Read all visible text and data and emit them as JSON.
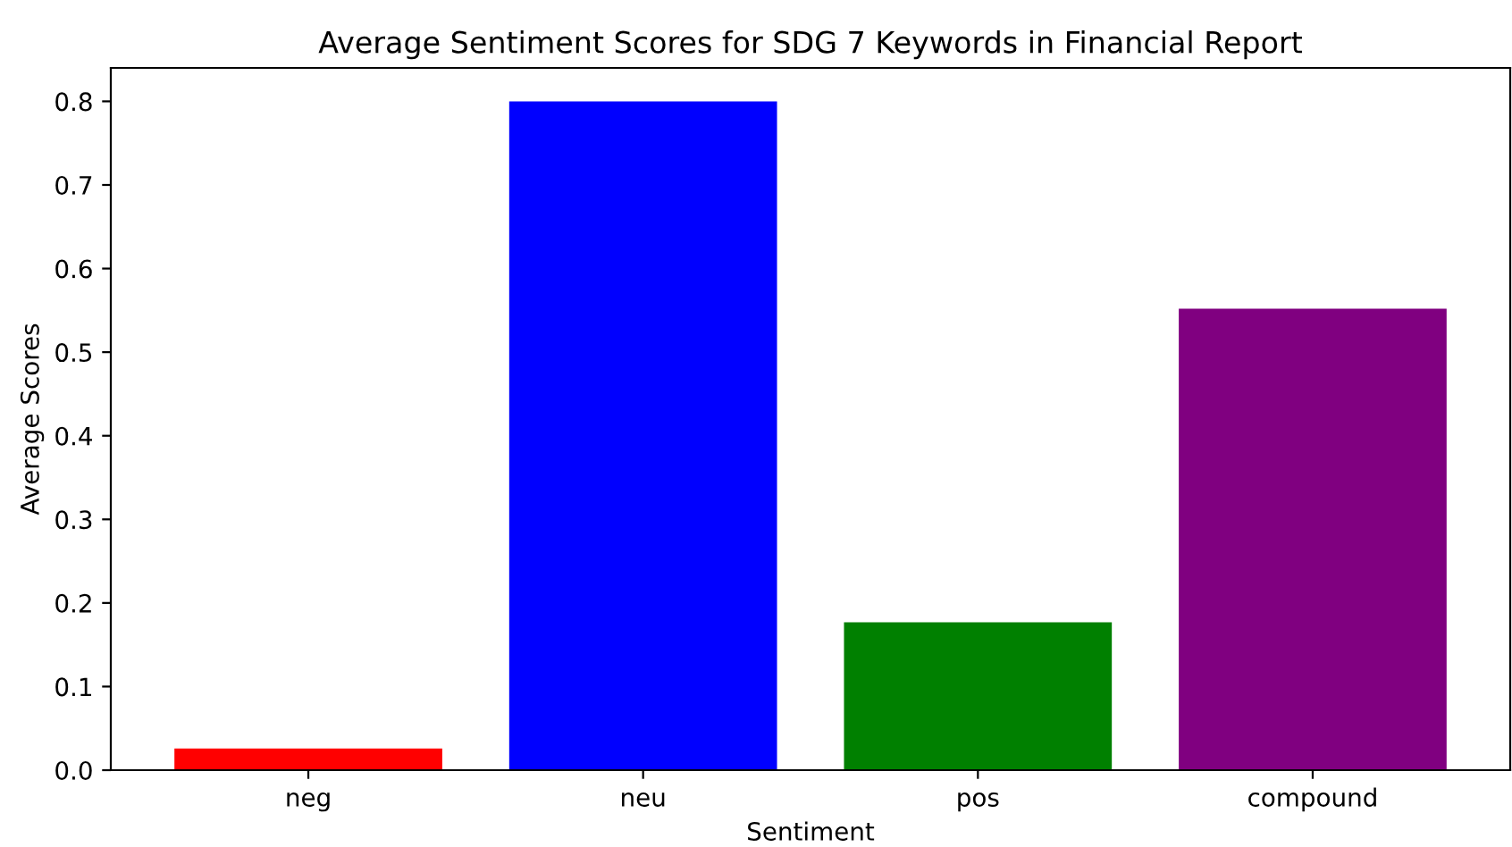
{
  "chart_data": {
    "type": "bar",
    "title": "Average Sentiment Scores for SDG 7 Keywords in Financial Report",
    "xlabel": "Sentiment",
    "ylabel": "Average Scores",
    "categories": [
      "neg",
      "neu",
      "pos",
      "compound"
    ],
    "values": [
      0.026,
      0.8,
      0.177,
      0.552
    ],
    "colors": [
      "#ff0000",
      "#0000ff",
      "#008000",
      "#800080"
    ],
    "ylim": [
      0,
      0.84
    ],
    "yticks": [
      {
        "value": 0,
        "label": "0.0"
      },
      0.1,
      0.2,
      0.3,
      0.4,
      0.5,
      0.6,
      0.7,
      0.8
    ],
    "grid": false,
    "legend": false
  }
}
